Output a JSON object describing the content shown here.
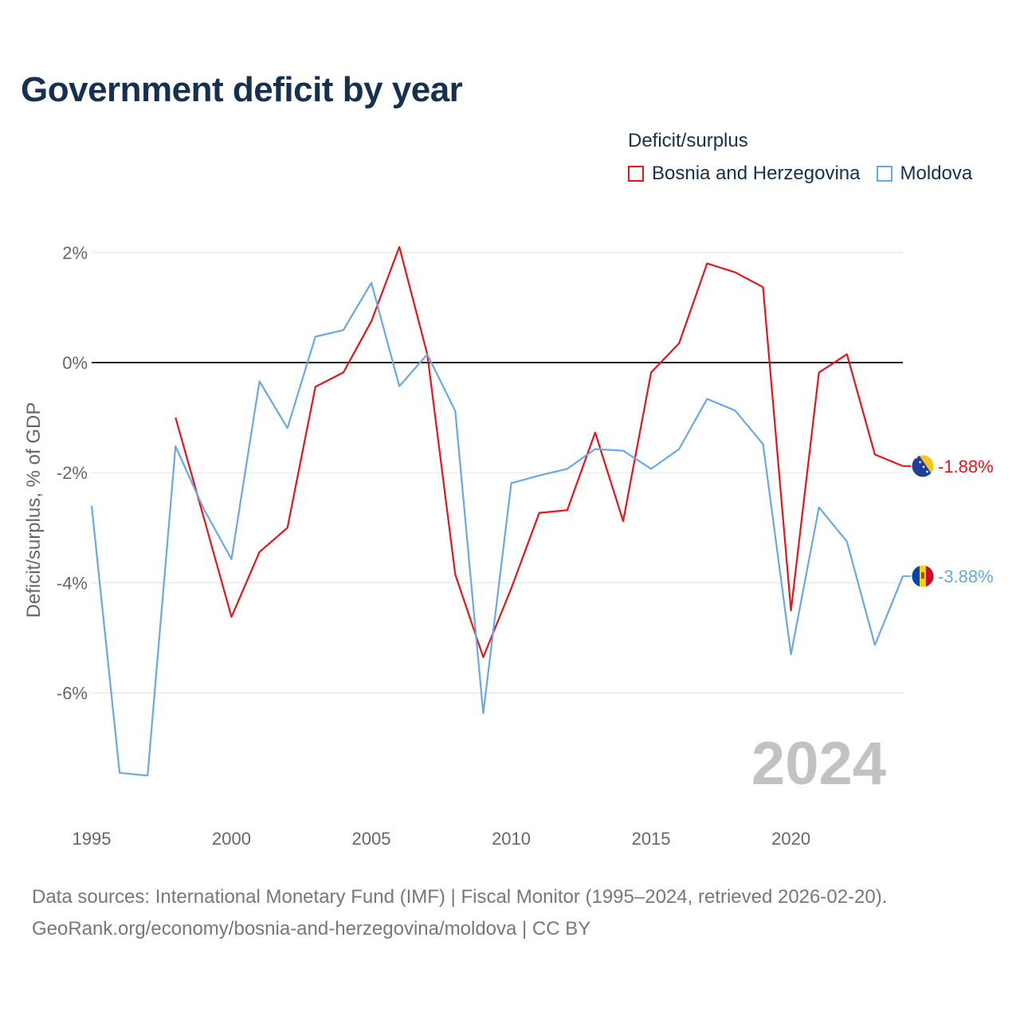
{
  "title": "Government deficit by year",
  "legend": {
    "title": "Deficit/surplus",
    "items": [
      {
        "label": "Bosnia and Herzegovina",
        "color": "#e8141b"
      },
      {
        "label": "Moldova",
        "color": "#69a9e3"
      }
    ]
  },
  "footer": {
    "sources": "Data sources: International Monetary Fund (IMF) | Fiscal Monitor (1995–2024, retrieved 2026-02-20).",
    "credit": "GeoRank.org/economy/bosnia-and-herzegovina/moldova | CC BY"
  },
  "chart_data": {
    "type": "line",
    "title": "Government deficit by year",
    "xlabel": "",
    "ylabel": "Deficit/surplus, % of GDP",
    "xlim": [
      1995,
      2024
    ],
    "ylim": [
      -8,
      2.5
    ],
    "y_ticks": [
      2,
      0,
      -2,
      -4,
      -6
    ],
    "y_tick_labels": [
      "2%",
      "0%",
      "-2%",
      "-4%",
      "-6%"
    ],
    "x_ticks": [
      1995,
      2000,
      2005,
      2010,
      2015,
      2020
    ],
    "x_tick_labels": [
      "1995",
      "2000",
      "2005",
      "2010",
      "2015",
      "2020"
    ],
    "reference_line": 0,
    "watermark_year": "2024",
    "series": [
      {
        "name": "Bosnia and Herzegovina",
        "color": "#e8141b",
        "x": [
          1998,
          1999,
          2000,
          2001,
          2002,
          2003,
          2004,
          2005,
          2006,
          2007,
          2008,
          2009,
          2010,
          2011,
          2012,
          2013,
          2014,
          2015,
          2016,
          2017,
          2018,
          2019,
          2020,
          2021,
          2022,
          2023,
          2024
        ],
        "values": [
          -1.0,
          -2.8,
          -4.62,
          -3.44,
          -3.0,
          -0.44,
          -0.18,
          0.75,
          2.1,
          0.15,
          -3.85,
          -5.35,
          -4.1,
          -2.73,
          -2.68,
          -1.27,
          -2.88,
          -0.18,
          0.35,
          1.8,
          1.64,
          1.37,
          -4.5,
          -0.18,
          0.15,
          -1.67,
          -1.88
        ],
        "end_label": "-1.88%"
      },
      {
        "name": "Moldova",
        "color": "#69a9e3",
        "x": [
          1995,
          1996,
          1997,
          1998,
          1999,
          2000,
          2001,
          2002,
          2003,
          2004,
          2005,
          2006,
          2007,
          2008,
          2009,
          2010,
          2011,
          2012,
          2013,
          2014,
          2015,
          2016,
          2017,
          2018,
          2019,
          2020,
          2021,
          2022,
          2023,
          2024
        ],
        "values": [
          -2.6,
          -7.45,
          -7.5,
          -1.52,
          -2.65,
          -3.57,
          -0.34,
          -1.19,
          0.47,
          0.59,
          1.45,
          -0.43,
          0.15,
          -0.88,
          -6.37,
          -2.19,
          -2.05,
          -1.93,
          -1.57,
          -1.6,
          -1.93,
          -1.57,
          -0.66,
          -0.87,
          -1.48,
          -5.3,
          -2.63,
          -3.25,
          -5.13,
          -3.88
        ],
        "end_label": "-3.88%"
      }
    ]
  }
}
